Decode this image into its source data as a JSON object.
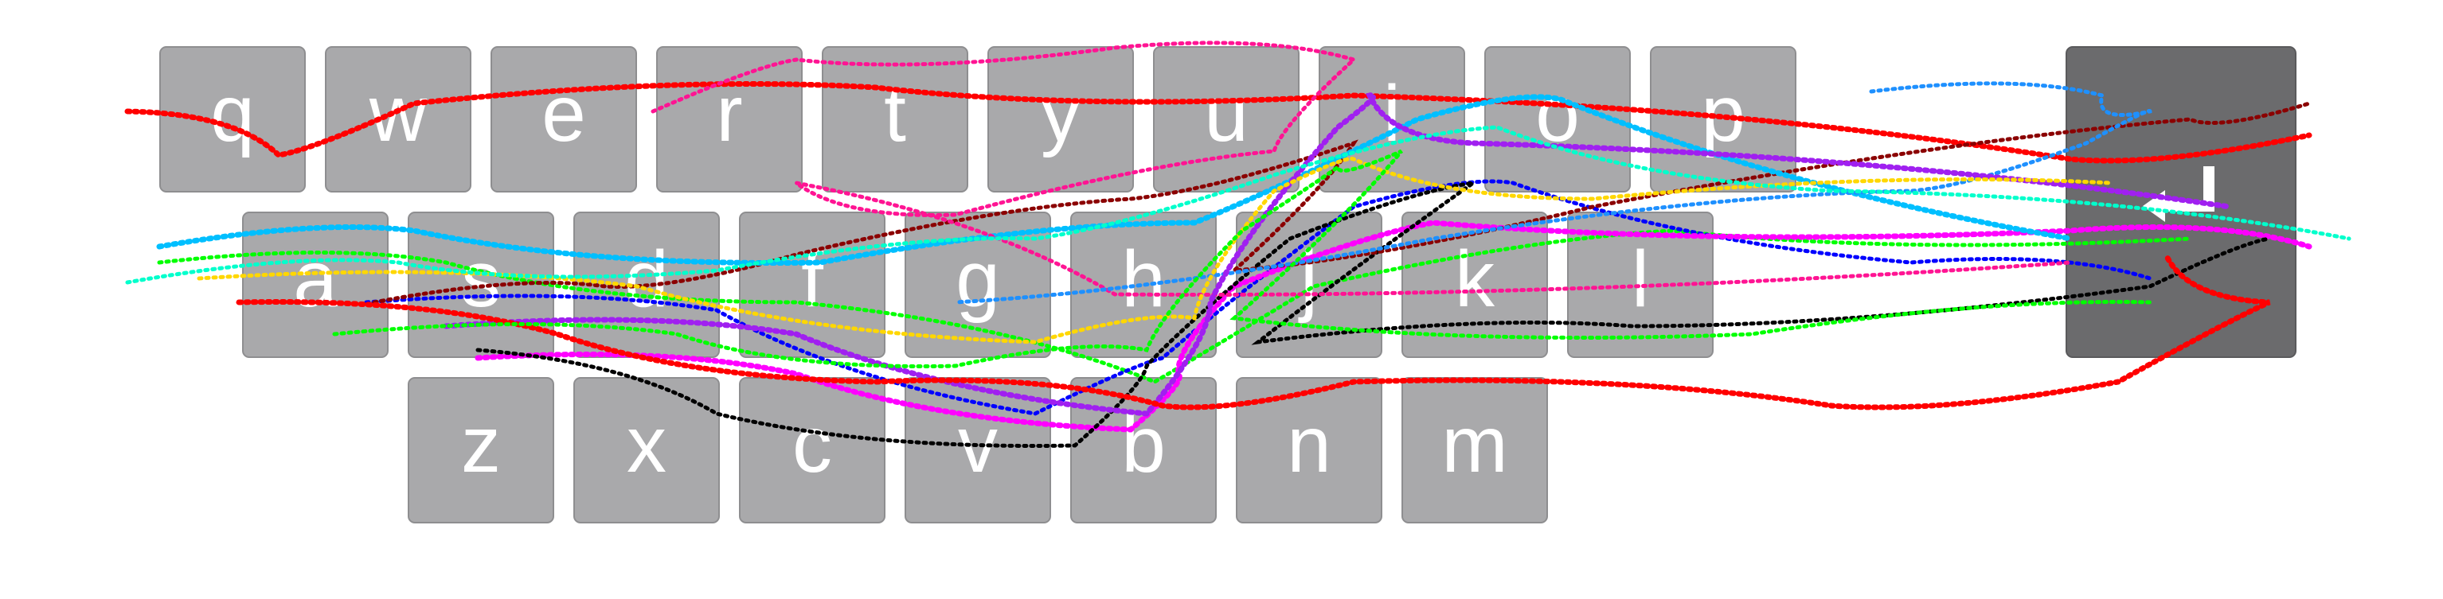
{
  "keyboard": {
    "rows": [
      [
        "q",
        "w",
        "e",
        "r",
        "t",
        "y",
        "u",
        "i",
        "o",
        "p"
      ],
      [
        "a",
        "s",
        "d",
        "f",
        "g",
        "h",
        "j",
        "k",
        "l"
      ],
      [
        "z",
        "x",
        "c",
        "v",
        "b",
        "n",
        "m"
      ]
    ],
    "enter_icon": "enter-return-icon",
    "colors": {
      "key_fill": "#a9a9ab",
      "key_text": "#ffffff",
      "enter_key_fill": "#6b6b6d"
    }
  },
  "gesture_traces": {
    "colors": [
      "#ff0000",
      "#00ff00",
      "#0000ff",
      "#ff00ff",
      "#000000",
      "#8b0000",
      "#00bfff",
      "#ff1493",
      "#1e90ff",
      "#a020f0",
      "#ffd700",
      "#00ffcc"
    ]
  }
}
